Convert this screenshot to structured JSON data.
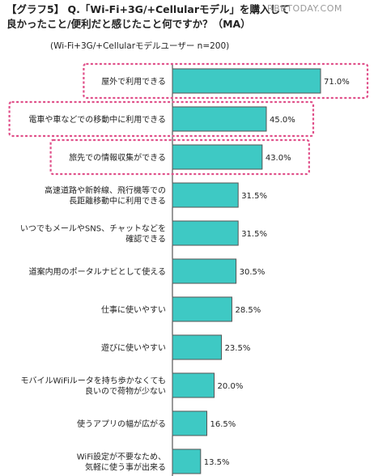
{
  "title_line1": "【グラフ5】 Q.「Wi-Fi+3G/+Cellularモデル」を購入して",
  "title_line2": "良かったこと/便利だと感じたこと何ですか？（MA）",
  "subtitle": "(Wi-Fi+3G/+Cellularモデルユーザー n=200)",
  "watermark": "RBBTODAY.COM",
  "colors": {
    "bar": "#3ec9c4",
    "bar_border": "#555555",
    "highlight": "#e0508a"
  },
  "chart_data": {
    "type": "bar",
    "orientation": "horizontal",
    "categories": [
      [
        "屋外で利用できる"
      ],
      [
        "電車や車などでの移動中に利用できる"
      ],
      [
        "旅先での情報収集ができる"
      ],
      [
        "高速道路や新幹線、飛行機等での",
        "長距離移動中に利用できる"
      ],
      [
        "いつでもメールやSNS、チャットなどを",
        "確認できる"
      ],
      [
        "道案内用のポータルナビとして使える"
      ],
      [
        "仕事に使いやすい"
      ],
      [
        "遊びに使いやすい"
      ],
      [
        "モバイルWiFiルータを持ち歩かなくても",
        "良いので荷物が少ない"
      ],
      [
        "使うアプリの幅が広がる"
      ],
      [
        "WiFi設定が不要なため、",
        "気軽に使う事が出来る"
      ]
    ],
    "values": [
      71.0,
      45.0,
      43.0,
      31.5,
      31.5,
      30.5,
      28.5,
      23.5,
      20.0,
      16.5,
      13.5
    ],
    "value_labels": [
      "71.0%",
      "45.0%",
      "43.0%",
      "31.5%",
      "31.5%",
      "30.5%",
      "28.5%",
      "23.5%",
      "20.0%",
      "16.5%",
      "13.5%"
    ],
    "highlighted": [
      0,
      1,
      2
    ],
    "xlim": [
      0,
      71.0
    ],
    "grid": false,
    "legend": "none"
  }
}
